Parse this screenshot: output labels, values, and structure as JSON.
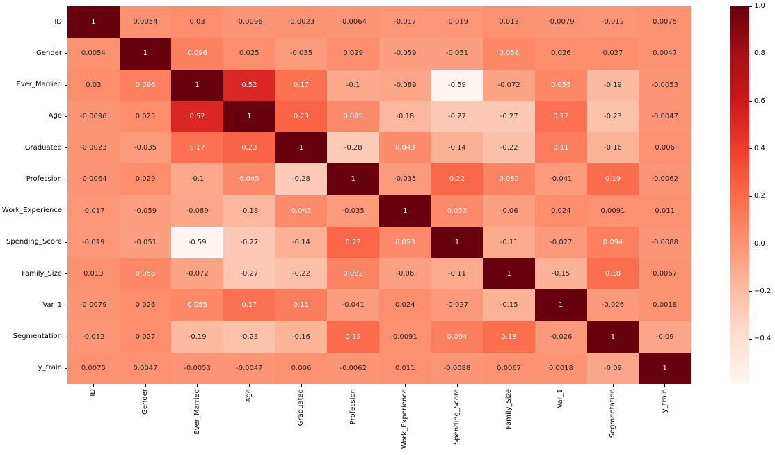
{
  "chart_data": {
    "type": "heatmap",
    "title": "",
    "xlabel": "",
    "ylabel": "",
    "categories": [
      "ID",
      "Gender",
      "Ever_Married",
      "Age",
      "Graduated",
      "Profession",
      "Work_Experience",
      "Spending_Score",
      "Family_Size",
      "Var_1",
      "Segmentation",
      "y_train"
    ],
    "matrix": [
      [
        1,
        0.0054,
        0.03,
        -0.0096,
        -0.0023,
        -0.0064,
        -0.017,
        -0.019,
        0.013,
        -0.0079,
        -0.012,
        0.0075
      ],
      [
        0.0054,
        1,
        0.096,
        0.025,
        -0.035,
        0.029,
        -0.059,
        -0.051,
        0.058,
        0.026,
        0.027,
        0.0047
      ],
      [
        0.03,
        0.096,
        1,
        0.52,
        0.17,
        -0.1,
        -0.089,
        -0.59,
        -0.072,
        0.055,
        -0.19,
        -0.0053
      ],
      [
        -0.0096,
        0.025,
        0.52,
        1,
        0.23,
        0.045,
        -0.18,
        -0.27,
        -0.27,
        0.17,
        -0.23,
        -0.0047
      ],
      [
        -0.0023,
        -0.035,
        0.17,
        0.23,
        1,
        -0.28,
        0.043,
        -0.14,
        -0.22,
        0.11,
        -0.16,
        0.006
      ],
      [
        -0.0064,
        0.029,
        -0.1,
        0.045,
        -0.28,
        1,
        -0.035,
        0.22,
        0.082,
        -0.041,
        0.19,
        -0.0062
      ],
      [
        -0.017,
        -0.059,
        -0.089,
        -0.18,
        0.043,
        -0.035,
        1,
        0.053,
        -0.06,
        0.024,
        0.0091,
        0.011
      ],
      [
        -0.019,
        -0.051,
        -0.59,
        -0.27,
        -0.14,
        0.22,
        0.053,
        1,
        -0.11,
        -0.027,
        0.094,
        -0.0088
      ],
      [
        0.013,
        0.058,
        -0.072,
        -0.27,
        -0.22,
        0.082,
        -0.06,
        -0.11,
        1,
        -0.15,
        0.18,
        0.0067
      ],
      [
        -0.0079,
        0.026,
        0.055,
        0.17,
        0.11,
        -0.041,
        0.024,
        -0.027,
        -0.15,
        1,
        -0.026,
        0.0018
      ],
      [
        -0.012,
        0.027,
        -0.19,
        -0.23,
        -0.16,
        0.19,
        0.0091,
        0.094,
        0.18,
        -0.026,
        1,
        -0.09
      ],
      [
        0.0075,
        0.0047,
        -0.0053,
        -0.0047,
        0.006,
        -0.0062,
        0.011,
        -0.0088,
        0.0067,
        0.0018,
        -0.09,
        1
      ]
    ],
    "annotation_format": ".2g",
    "colormap": "Reds",
    "vmin": -0.59,
    "vmax": 1.0,
    "grid": false,
    "legend_position": "right-colorbar",
    "colorbar": {
      "ticks": [
        1.0,
        0.8,
        0.6,
        0.4,
        0.2,
        0.0,
        -0.2,
        -0.4
      ],
      "tick_labels": [
        "1.0",
        "0.8",
        "0.6",
        "0.4",
        "0.2",
        "0.0",
        "−0.2",
        "−0.4"
      ]
    }
  },
  "colors": {
    "background": "#ffffff",
    "annotation_dark": "#262626",
    "annotation_light": "#ffffff",
    "tick_label": "#000000",
    "reds_colormap_anchors": [
      "#fff5f0",
      "#fee0d2",
      "#fcbba1",
      "#fc9272",
      "#fb6a4a",
      "#ef3b2c",
      "#cb181d",
      "#a50f15",
      "#67000d"
    ]
  }
}
